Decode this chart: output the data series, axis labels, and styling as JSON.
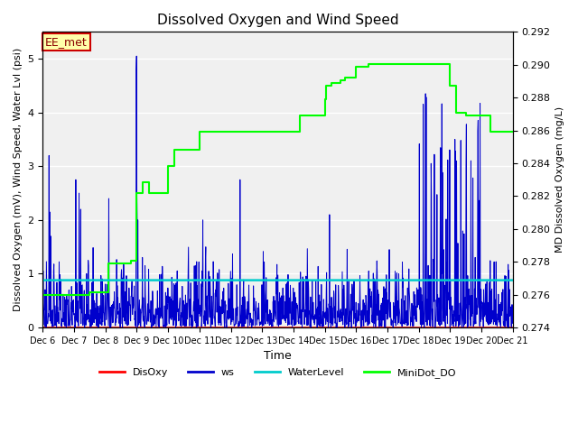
{
  "title": "Dissolved Oxygen and Wind Speed",
  "xlabel": "Time",
  "ylabel_left": "Dissolved Oxygen (mV), Wind Speed, Water Lvl (psi)",
  "ylabel_right": "MD Dissolved Oxygen (mg/L)",
  "annotation": "EE_met",
  "ylim_left": [
    0.0,
    5.5
  ],
  "ylim_right": [
    0.274,
    0.292
  ],
  "x_start": 6,
  "x_end": 21,
  "x_ticks": [
    6,
    7,
    8,
    9,
    10,
    11,
    12,
    13,
    14,
    15,
    16,
    17,
    18,
    19,
    20,
    21
  ],
  "x_tick_labels": [
    "Dec 6",
    "Dec 7",
    "Dec 8",
    "Dec 9",
    "Dec 10",
    "Dec 11",
    "Dec 12",
    "Dec 13",
    "Dec 14",
    "Dec 15",
    "Dec 16",
    "Dec 17",
    "Dec 18",
    "Dec 19",
    "Dec 20",
    "Dec 21"
  ],
  "water_level_value": 0.88,
  "disoxy_value": 0.0,
  "plot_bg_color": "#f0f0f0",
  "colors": {
    "disoxy": "#ff0000",
    "ws": "#0000cc",
    "water_level": "#00cccc",
    "minidot": "#00ff00"
  },
  "legend_labels": [
    "DisOxy",
    "ws",
    "WaterLevel",
    "MiniDot_DO"
  ],
  "minidot_x": [
    6.0,
    6.5,
    7.0,
    7.3,
    7.5,
    7.7,
    8.0,
    8.1,
    8.2,
    8.3,
    8.35,
    8.4,
    8.5,
    8.6,
    8.7,
    8.8,
    8.85,
    8.9,
    9.0,
    9.1,
    9.15,
    9.2,
    9.3,
    9.4,
    9.5,
    9.6,
    9.7,
    9.8,
    10.0,
    10.2,
    10.5,
    10.8,
    11.0,
    11.05,
    11.1,
    11.2,
    11.5,
    11.8,
    12.0,
    12.5,
    13.0,
    13.5,
    14.0,
    14.2,
    14.4,
    14.45,
    14.5,
    14.6,
    14.7,
    14.8,
    14.85,
    14.9,
    15.0,
    15.05,
    15.1,
    15.2,
    15.3,
    15.4,
    15.5,
    15.6,
    15.65,
    15.7,
    15.8,
    16.0,
    16.2,
    16.4,
    16.5,
    16.6,
    16.7,
    16.8,
    16.9,
    17.0,
    17.2,
    17.5,
    17.8,
    18.0,
    18.2,
    18.5,
    18.8,
    19.0,
    19.2,
    19.5,
    20.0,
    20.3,
    20.5,
    21.0
  ],
  "minidot_y": [
    0.6,
    0.6,
    0.6,
    0.6,
    0.65,
    0.65,
    0.65,
    1.2,
    1.2,
    1.2,
    1.2,
    1.2,
    1.2,
    1.2,
    1.2,
    1.25,
    1.25,
    1.25,
    2.5,
    2.5,
    2.5,
    2.7,
    2.7,
    2.5,
    2.5,
    2.5,
    2.5,
    2.5,
    3.0,
    3.3,
    3.3,
    3.3,
    3.65,
    3.65,
    3.65,
    3.65,
    3.65,
    3.65,
    3.65,
    3.65,
    3.65,
    3.65,
    3.65,
    3.95,
    3.95,
    3.95,
    3.95,
    3.95,
    3.95,
    3.95,
    3.95,
    3.95,
    4.25,
    4.5,
    4.5,
    4.55,
    4.55,
    4.55,
    4.6,
    4.6,
    4.65,
    4.65,
    4.65,
    4.85,
    4.85,
    4.9,
    4.9,
    4.9,
    4.9,
    4.9,
    4.9,
    4.9,
    4.9,
    4.9,
    4.9,
    4.9,
    4.9,
    4.9,
    4.9,
    4.5,
    4.0,
    3.95,
    3.95,
    3.65,
    3.65,
    3.65
  ]
}
